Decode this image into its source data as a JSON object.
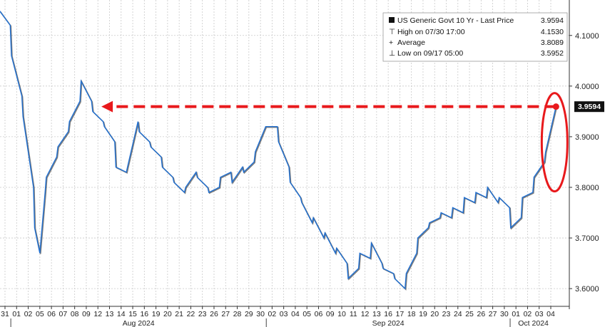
{
  "chart_data": {
    "type": "line",
    "y_ticks": [
      "4.1000",
      "4.0000",
      "3.9000",
      "3.8000",
      "3.7000",
      "3.6000"
    ],
    "ylim": [
      3.565,
      4.17
    ],
    "x_ticks": [
      "31",
      "01",
      "02",
      "05",
      "06",
      "07",
      "08",
      "09",
      "12",
      "13",
      "14",
      "15",
      "16",
      "19",
      "20",
      "21",
      "22",
      "23",
      "26",
      "27",
      "28",
      "29",
      "30",
      "02",
      "03",
      "04",
      "05",
      "06",
      "09",
      "10",
      "11",
      "12",
      "13",
      "16",
      "17",
      "18",
      "19",
      "20",
      "23",
      "24",
      "25",
      "26",
      "27",
      "30",
      "01",
      "02",
      "03",
      "04"
    ],
    "month_labels": [
      "Aug 2024",
      "Sep 2024",
      "Oct 2024"
    ],
    "legend": {
      "title": "US Generic Govt 10 Yr - Last Price",
      "title_value": "3.9594",
      "rows": [
        {
          "label": "High on 07/30 17:00",
          "value": "4.1530"
        },
        {
          "label": "Average",
          "value": "3.8089"
        },
        {
          "label": "Low on 09/17 05:00",
          "value": "3.5952"
        }
      ]
    },
    "last_price_label": "3.9594",
    "series": [
      {
        "color": "#1f6fd1",
        "values": [
          [
            "31",
            4.148
          ],
          [
            "31",
            4.12
          ],
          [
            "01",
            4.06
          ],
          [
            "01",
            3.98
          ],
          [
            "02",
            3.94
          ],
          [
            "02",
            3.8
          ],
          [
            "05",
            3.72
          ],
          [
            "05",
            3.67
          ],
          [
            "05",
            3.79
          ],
          [
            "06",
            3.82
          ],
          [
            "06",
            3.86
          ],
          [
            "07",
            3.88
          ],
          [
            "07",
            3.91
          ],
          [
            "08",
            3.93
          ],
          [
            "08",
            3.97
          ],
          [
            "09",
            4.01
          ],
          [
            "09",
            3.97
          ],
          [
            "12",
            3.95
          ],
          [
            "12",
            3.93
          ],
          [
            "13",
            3.92
          ],
          [
            "13",
            3.89
          ],
          [
            "14",
            3.84
          ],
          [
            "14",
            3.83
          ],
          [
            "15",
            3.84
          ],
          [
            "15",
            3.93
          ],
          [
            "16",
            3.91
          ],
          [
            "16",
            3.89
          ],
          [
            "19",
            3.88
          ],
          [
            "19",
            3.86
          ],
          [
            "20",
            3.84
          ],
          [
            "20",
            3.82
          ],
          [
            "21",
            3.81
          ],
          [
            "21",
            3.79
          ],
          [
            "22",
            3.8
          ],
          [
            "22",
            3.83
          ],
          [
            "23",
            3.82
          ],
          [
            "23",
            3.8
          ],
          [
            "26",
            3.79
          ],
          [
            "26",
            3.8
          ],
          [
            "27",
            3.82
          ],
          [
            "27",
            3.83
          ],
          [
            "28",
            3.81
          ],
          [
            "28",
            3.84
          ],
          [
            "29",
            3.83
          ],
          [
            "29",
            3.85
          ],
          [
            "30",
            3.87
          ],
          [
            "30",
            3.92
          ],
          [
            "02",
            3.92
          ],
          [
            "02",
            3.92
          ],
          [
            "03",
            3.89
          ],
          [
            "03",
            3.84
          ],
          [
            "04",
            3.81
          ],
          [
            "04",
            3.78
          ],
          [
            "05",
            3.77
          ],
          [
            "05",
            3.73
          ],
          [
            "06",
            3.74
          ],
          [
            "06",
            3.7
          ],
          [
            "09",
            3.71
          ],
          [
            "09",
            3.67
          ],
          [
            "10",
            3.68
          ],
          [
            "10",
            3.65
          ],
          [
            "11",
            3.62
          ],
          [
            "11",
            3.64
          ],
          [
            "12",
            3.67
          ],
          [
            "12",
            3.66
          ],
          [
            "13",
            3.69
          ],
          [
            "13",
            3.65
          ],
          [
            "16",
            3.64
          ],
          [
            "16",
            3.63
          ],
          [
            "17",
            3.62
          ],
          [
            "17",
            3.6
          ],
          [
            "18",
            3.63
          ],
          [
            "18",
            3.67
          ],
          [
            "19",
            3.7
          ],
          [
            "19",
            3.72
          ],
          [
            "20",
            3.73
          ],
          [
            "20",
            3.74
          ],
          [
            "23",
            3.75
          ],
          [
            "23",
            3.74
          ],
          [
            "24",
            3.76
          ],
          [
            "24",
            3.75
          ],
          [
            "25",
            3.78
          ],
          [
            "25",
            3.77
          ],
          [
            "26",
            3.79
          ],
          [
            "26",
            3.78
          ],
          [
            "27",
            3.8
          ],
          [
            "27",
            3.77
          ],
          [
            "30",
            3.78
          ],
          [
            "30",
            3.76
          ],
          [
            "01",
            3.72
          ],
          [
            "01",
            3.74
          ],
          [
            "02",
            3.78
          ],
          [
            "02",
            3.79
          ],
          [
            "03",
            3.82
          ],
          [
            "03",
            3.85
          ],
          [
            "04",
            3.87
          ],
          [
            "04",
            3.9594
          ]
        ]
      }
    ],
    "annotation": {
      "type": "dashed-arrow",
      "color": "#e8191c",
      "from": [
        "04",
        3.9594
      ],
      "to": [
        "12",
        3.9594
      ]
    },
    "highlight": {
      "type": "ellipse",
      "color": "#e8191c",
      "around": [
        "04",
        3.9594
      ]
    }
  }
}
